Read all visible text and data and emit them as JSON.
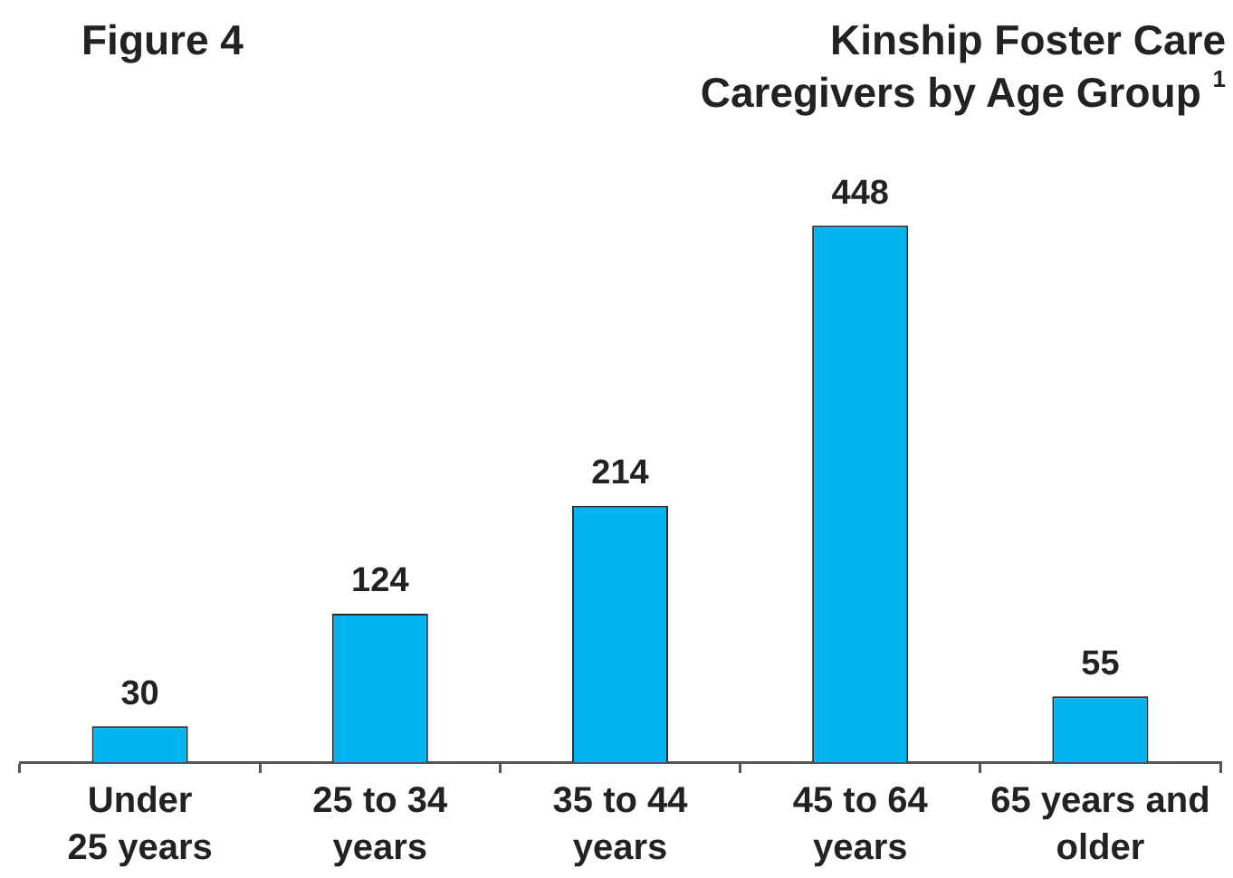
{
  "chart_data": {
    "type": "bar",
    "title": "Kinship Foster Care Caregivers by Age Group $^{1}$",
    "annotations": [
      "Figure 4"
    ],
    "categories": [
      "Under\n25 years",
      "25 to 34\nyears",
      "35 to 44\nyears",
      "45 to 64\nyears",
      "65 years and\nolder"
    ],
    "values": [
      30,
      124,
      214,
      448,
      55
    ],
    "color": "#00b5ef",
    "data_labels": true,
    "grid": false,
    "legend": false
  }
}
